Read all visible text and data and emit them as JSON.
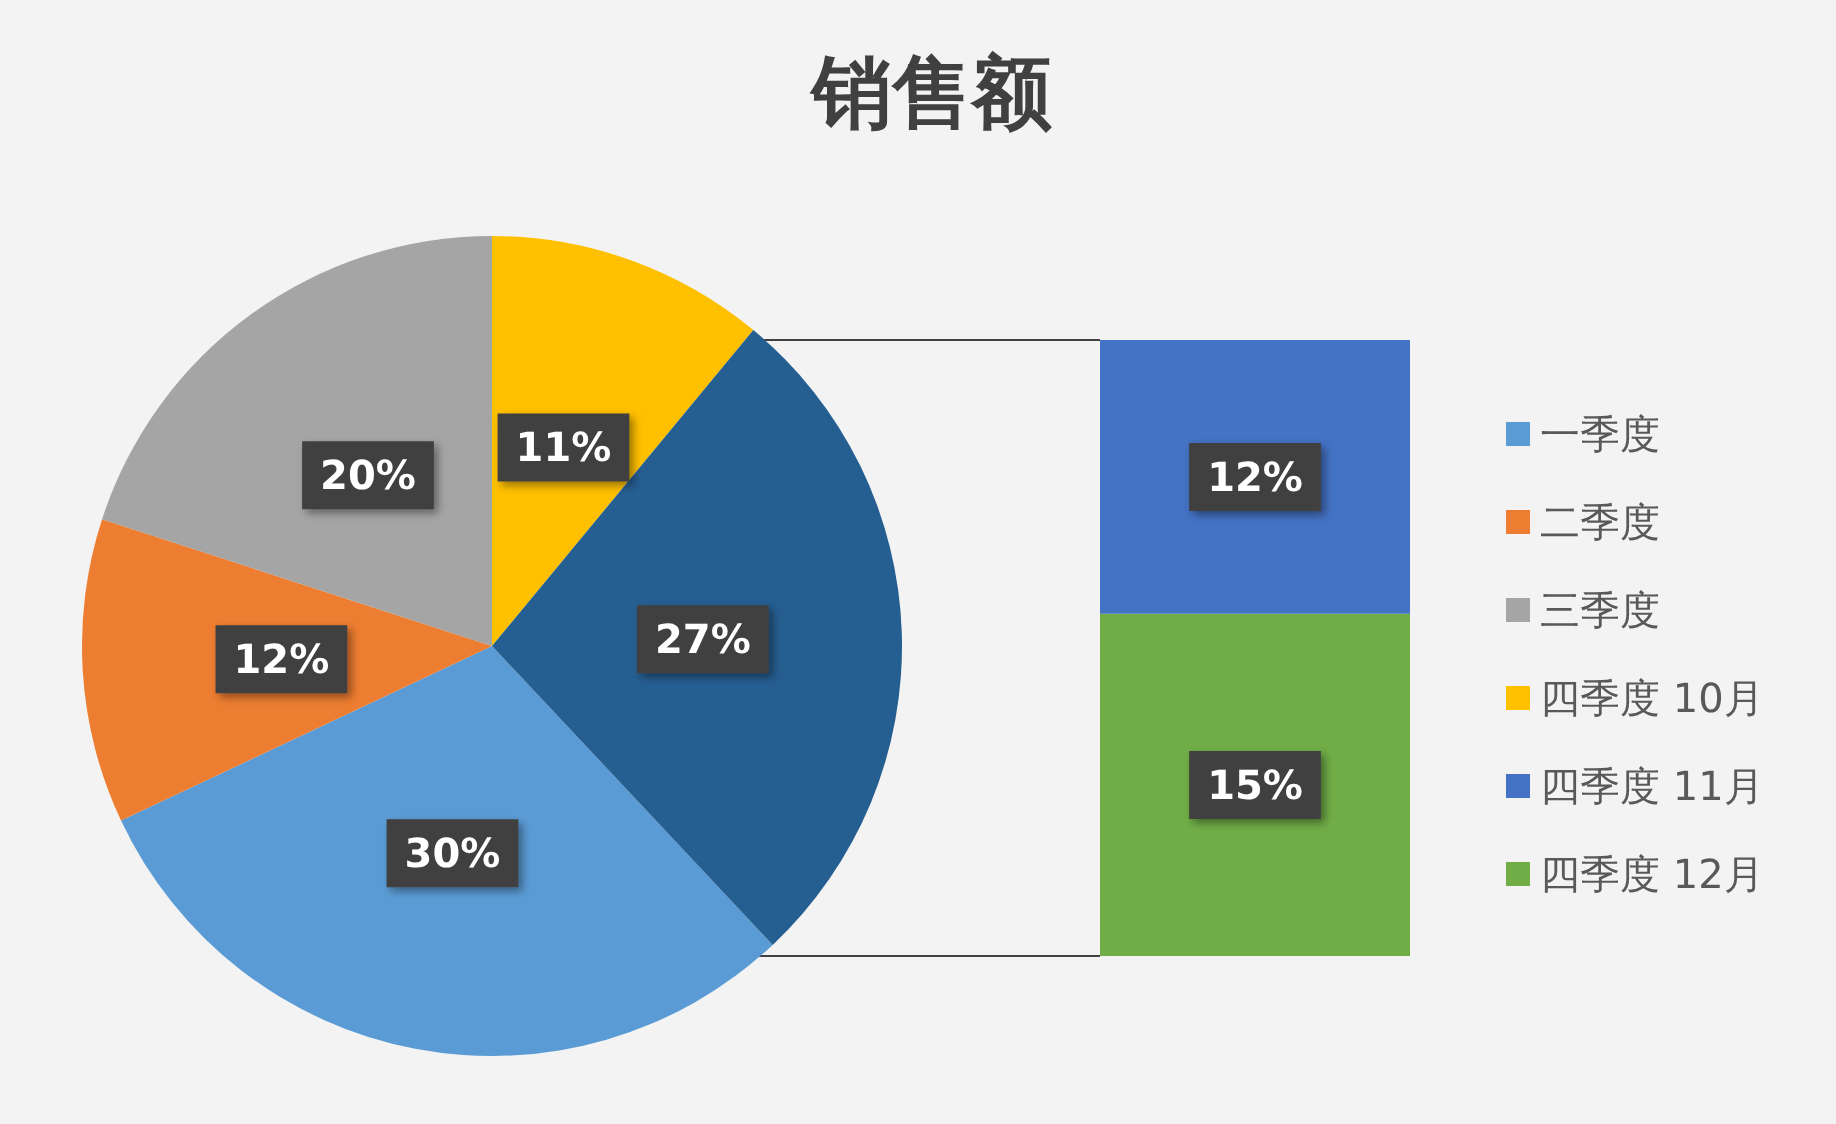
{
  "chart_data": [
    {
      "type": "pie",
      "title": "销售额",
      "categories": [
        "一季度",
        "二季度",
        "三季度",
        "四季度 10月",
        null
      ],
      "values": [
        30,
        12,
        20,
        11,
        27
      ],
      "colors": [
        "#5b9bd5",
        "#ed7d31",
        "#a5a5a5",
        "#ffc000",
        "#255e91"
      ],
      "value_labels": [
        "30%",
        "12%",
        "20%",
        "11%",
        "27%"
      ],
      "legend": "right"
    },
    {
      "type": "bar",
      "stacked": true,
      "categories": [
        null
      ],
      "series": [
        {
          "name": "四季度 12月",
          "color": "#70ad47",
          "values": [
            15
          ],
          "value_labels": [
            "15%"
          ]
        },
        {
          "name": "四季度 11月",
          "color": "#4472c4",
          "values": [
            12
          ],
          "value_labels": [
            "12%"
          ]
        }
      ],
      "tick_labels": false,
      "legend": "right"
    }
  ]
}
